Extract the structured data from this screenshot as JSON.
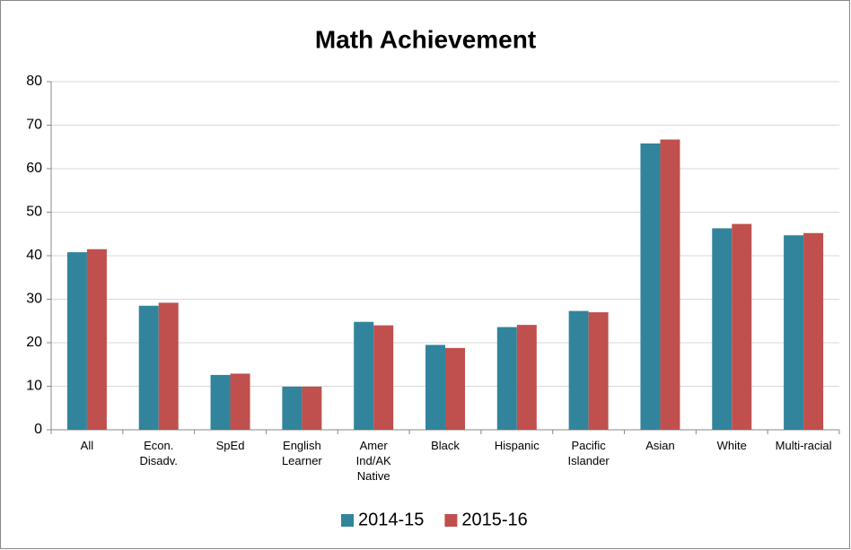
{
  "chart_data": {
    "type": "bar",
    "title": "Math Achievement",
    "categories": [
      "All",
      "Econ. Disadv.",
      "SpEd",
      "English Learner",
      "Amer Ind/AK Native",
      "Black",
      "Hispanic",
      "Pacific Islander",
      "Asian",
      "White",
      "Multi-racial"
    ],
    "series": [
      {
        "name": "2014-15",
        "color": "#31849b",
        "values": [
          40.8,
          28.5,
          12.6,
          9.9,
          24.8,
          19.5,
          23.6,
          27.3,
          65.8,
          46.3,
          44.7
        ]
      },
      {
        "name": "2015-16",
        "color": "#c0504d",
        "values": [
          41.5,
          29.2,
          12.9,
          9.9,
          24.0,
          18.8,
          24.1,
          27.0,
          66.7,
          47.3,
          45.2
        ]
      }
    ],
    "ylim": [
      0,
      80
    ],
    "yticks": [
      0,
      10,
      20,
      30,
      40,
      50,
      60,
      70,
      80
    ],
    "grid": true,
    "legend": "bottom"
  }
}
